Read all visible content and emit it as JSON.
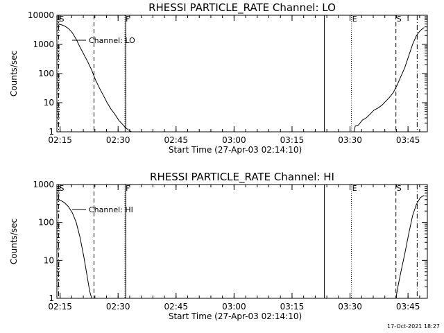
{
  "chart_data": [
    {
      "type": "line",
      "title": "RHESSI PARTICLE_RATE Channel: LO",
      "xlabel": "Start Time (27-Apr-03 02:14:10)",
      "ylabel": "Counts/sec",
      "yscale": "log",
      "ylim": [
        1,
        10000
      ],
      "yticks": [
        1,
        10,
        100,
        1000,
        10000
      ],
      "ytick_labels": [
        "1",
        "10",
        "100",
        "1000",
        "10000"
      ],
      "xlim_minutes": [
        0,
        95.83
      ],
      "xtick_minutes": [
        0.83,
        15.83,
        30.83,
        45.83,
        60.83,
        75.83,
        90.83
      ],
      "xtick_labels": [
        "02:15",
        "02:30",
        "02:45",
        "03:00",
        "03:15",
        "03:30",
        "03:45"
      ],
      "legend": "Channel: LO",
      "series": [
        {
          "name": "Channel: LO",
          "segments": [
            {
              "x": [
                0,
                1,
                2,
                3,
                4,
                5,
                6,
                7,
                8,
                9,
                10,
                11,
                12,
                13,
                14,
                15,
                16,
                17,
                17.7,
                18.6,
                19.3
              ],
              "y": [
                5000,
                4800,
                4300,
                3500,
                2500,
                1500,
                800,
                450,
                250,
                130,
                60,
                32,
                18,
                10,
                6,
                4,
                2.5,
                1.8,
                1.4,
                1.15,
                1
              ]
            },
            {
              "x": [
                76.8,
                77.2,
                78,
                79,
                80,
                81,
                82,
                83,
                84,
                85,
                86,
                87,
                88,
                89,
                90,
                91,
                92,
                93,
                94,
                95
              ],
              "y": [
                1,
                1.6,
                1.7,
                2.5,
                3,
                4,
                5.5,
                6.5,
                8,
                11,
                15,
                22,
                40,
                80,
                160,
                400,
                1000,
                2000,
                3000,
                3800
              ]
            }
          ]
        }
      ],
      "markers": [
        {
          "label": "S",
          "minute": 0.45,
          "style": "dashdot"
        },
        {
          "label": "",
          "minute": 9.6,
          "style": "dashed"
        },
        {
          "label": "F",
          "minute": 17.6,
          "style": "dotted"
        },
        {
          "label": "",
          "minute": 17.8,
          "style": "solid"
        },
        {
          "label": "",
          "minute": 69.2,
          "style": "solid"
        },
        {
          "label": "E",
          "minute": 76.2,
          "style": "dotted"
        },
        {
          "label": "S",
          "minute": 87.7,
          "style": "dashed"
        },
        {
          "label": "",
          "minute": 93.2,
          "style": "dashdot"
        }
      ]
    },
    {
      "type": "line",
      "title": "RHESSI PARTICLE_RATE Channel: HI",
      "xlabel": "Start Time (27-Apr-03 02:14:10)",
      "ylabel": "Counts/sec",
      "yscale": "log",
      "ylim": [
        1,
        1000
      ],
      "yticks": [
        1,
        10,
        100,
        1000
      ],
      "ytick_labels": [
        "1",
        "10",
        "100",
        "1000"
      ],
      "xlim_minutes": [
        0,
        95.83
      ],
      "xtick_minutes": [
        0.83,
        15.83,
        30.83,
        45.83,
        60.83,
        75.83,
        90.83
      ],
      "xtick_labels": [
        "02:15",
        "02:30",
        "02:45",
        "03:00",
        "03:15",
        "03:30",
        "03:45"
      ],
      "legend": "Channel: HI",
      "series": [
        {
          "name": "Channel: HI",
          "segments": [
            {
              "x": [
                0,
                1,
                2,
                3,
                4,
                5,
                6,
                7,
                8,
                8.5,
                9
              ],
              "y": [
                400,
                380,
                330,
                260,
                180,
                100,
                40,
                12,
                3,
                1.5,
                1
              ]
            },
            {
              "x": [
                87.7,
                88.2,
                89,
                90,
                91,
                92,
                93,
                94,
                95
              ],
              "y": [
                1,
                2,
                5,
                15,
                50,
                150,
                300,
                450,
                520
              ]
            }
          ]
        }
      ],
      "markers": [
        {
          "label": "S",
          "minute": 0.45,
          "style": "dashdot"
        },
        {
          "label": "",
          "minute": 9.6,
          "style": "dashed"
        },
        {
          "label": "F",
          "minute": 17.6,
          "style": "dotted"
        },
        {
          "label": "",
          "minute": 17.8,
          "style": "solid"
        },
        {
          "label": "",
          "minute": 69.2,
          "style": "solid"
        },
        {
          "label": "E",
          "minute": 76.2,
          "style": "dotted"
        },
        {
          "label": "S",
          "minute": 87.7,
          "style": "dashed"
        },
        {
          "label": "",
          "minute": 93.2,
          "style": "dashdot"
        }
      ]
    }
  ],
  "footer": "17-Oct-2021 18:27"
}
